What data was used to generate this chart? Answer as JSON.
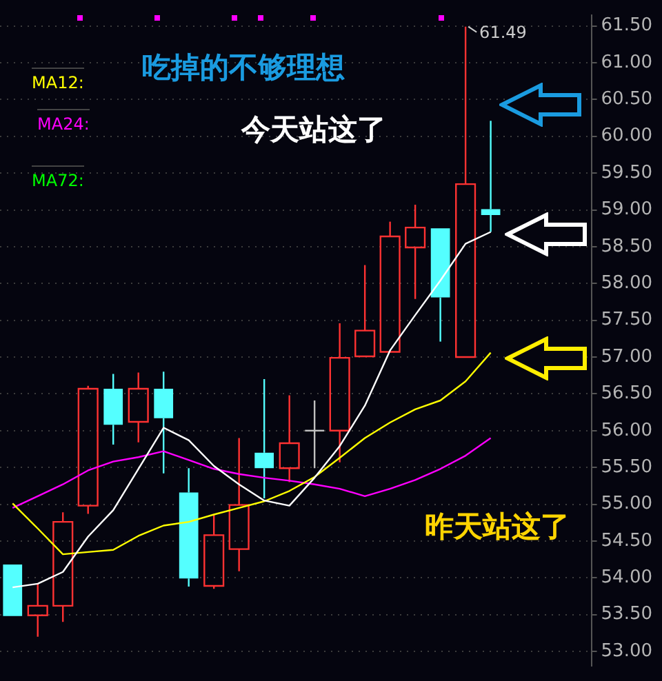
{
  "chart_data": {
    "type": "candlestick",
    "categories": [
      null,
      null,
      null,
      null,
      null,
      null,
      null,
      null,
      null,
      null,
      null,
      null,
      null,
      null,
      null,
      null,
      null,
      null,
      null,
      null
    ],
    "ohlc": [
      [
        54.18,
        54.18,
        53.48,
        53.48
      ],
      [
        53.49,
        53.92,
        53.2,
        53.62
      ],
      [
        53.62,
        54.89,
        53.4,
        54.76
      ],
      [
        54.98,
        56.61,
        54.87,
        56.57
      ],
      [
        56.57,
        56.77,
        55.81,
        56.08
      ],
      [
        56.12,
        56.79,
        55.84,
        56.57
      ],
      [
        56.57,
        56.8,
        55.42,
        56.17
      ],
      [
        55.16,
        55.49,
        53.88,
        53.99
      ],
      [
        53.89,
        54.86,
        53.85,
        54.58
      ],
      [
        54.39,
        55.9,
        54.09,
        54.99
      ],
      [
        55.7,
        56.7,
        55.08,
        55.49
      ],
      [
        55.49,
        56.48,
        55.3,
        55.83
      ],
      [
        56.0,
        56.41,
        55.49,
        56.0
      ],
      [
        56.0,
        57.46,
        55.57,
        56.99
      ],
      [
        57.01,
        58.25,
        57.01,
        57.36
      ],
      [
        57.07,
        58.84,
        57.07,
        58.64
      ],
      [
        58.49,
        59.07,
        57.79,
        58.76
      ],
      [
        58.75,
        58.75,
        57.21,
        57.81
      ],
      [
        57.0,
        61.49,
        57.0,
        59.35
      ],
      [
        59.01,
        60.21,
        58.7,
        58.93
      ]
    ],
    "colors": [
      "#54ffff",
      "#ff3232",
      "#ff3232",
      "#ff3232",
      "#54ffff",
      "#ff3232",
      "#54ffff",
      "#54ffff",
      "#ff3232",
      "#ff3232",
      "#54ffff",
      "#ff3232",
      "#c0c0c0",
      "#ff3232",
      "#ff3232",
      "#ff3232",
      "#ff3232",
      "#54ffff",
      "#ff3232",
      "#54ffff"
    ],
    "series": [
      {
        "type": "line",
        "color": "#ffffff",
        "values": [
          53.87,
          53.92,
          54.08,
          54.56,
          54.92,
          55.48,
          56.04,
          55.87,
          55.52,
          55.27,
          55.05,
          54.98,
          55.36,
          55.79,
          56.34,
          57.09,
          57.57,
          58.04,
          58.54,
          58.7
        ]
      },
      {
        "type": "line",
        "name": "MA12:",
        "color": "#ffff00",
        "values": [
          55.01,
          54.67,
          54.32,
          54.35,
          54.38,
          54.57,
          54.71,
          54.76,
          54.86,
          54.95,
          55.04,
          55.18,
          55.37,
          55.63,
          55.9,
          56.11,
          56.29,
          56.41,
          56.67,
          57.06
        ]
      },
      {
        "type": "line",
        "name": "MA24:",
        "color": "#ff00ff",
        "values": [
          54.95,
          55.11,
          55.27,
          55.46,
          55.58,
          55.64,
          55.72,
          55.6,
          55.48,
          55.41,
          55.36,
          55.32,
          55.27,
          55.21,
          55.11,
          55.21,
          55.33,
          55.48,
          55.66,
          55.9
        ]
      }
    ],
    "ylim": [
      52.8,
      61.65
    ],
    "yticks": [
      {
        "value": 53,
        "label": "53.00"
      },
      {
        "value": 53.5,
        "label": "53.50"
      },
      {
        "value": 54,
        "label": "54.00"
      },
      {
        "value": 54.5,
        "label": "54.50"
      },
      {
        "value": 55,
        "label": "55.00"
      },
      {
        "value": 55.5,
        "label": "55.50"
      },
      {
        "value": 56,
        "label": "56.00"
      },
      {
        "value": 56.5,
        "label": "56.50"
      },
      {
        "value": 57,
        "label": "57.00"
      },
      {
        "value": 57.5,
        "label": "57.50"
      },
      {
        "value": 58,
        "label": "58.00"
      },
      {
        "value": 58.5,
        "label": "58.50"
      },
      {
        "value": 59,
        "label": "59.00"
      },
      {
        "value": 59.5,
        "label": "59.50"
      },
      {
        "value": 60,
        "label": "60.00"
      },
      {
        "value": 60.5,
        "label": "60.50"
      },
      {
        "value": 61,
        "label": "61.00"
      },
      {
        "value": 61.5,
        "label": "61.50"
      }
    ],
    "grid": "y",
    "legend": "top left",
    "tick_labels": "y",
    "marker": "none",
    "line_style": "solid",
    "annotations": [
      "61.49",
      "吃掉的不够理想",
      "今天站这了",
      "昨天站这了",
      "MA72:"
    ]
  }
}
